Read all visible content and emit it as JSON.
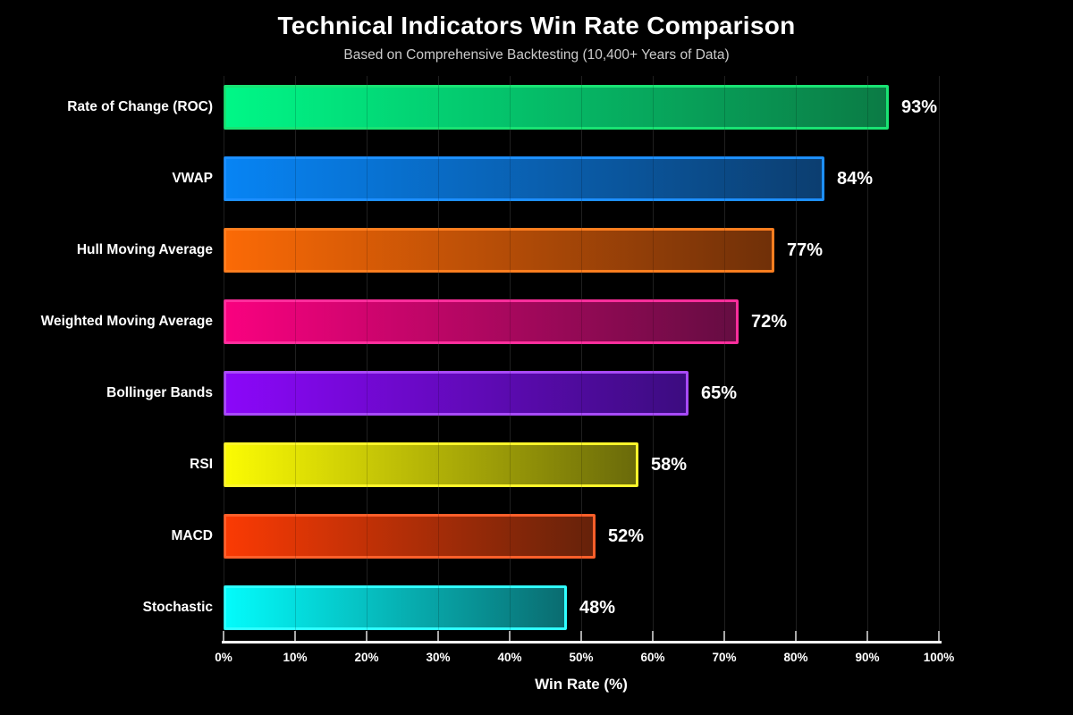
{
  "chart_data": {
    "type": "bar",
    "orientation": "horizontal",
    "title": "Technical Indicators Win Rate Comparison",
    "subtitle": "Based on Comprehensive Backtesting (10,400+ Years of Data)",
    "xlabel": "Win Rate (%)",
    "xlim": [
      0,
      100
    ],
    "x_tick_values": [
      0,
      10,
      20,
      30,
      40,
      50,
      60,
      70,
      80,
      90,
      100
    ],
    "x_tick_labels": [
      "0%",
      "10%",
      "20%",
      "30%",
      "40%",
      "50%",
      "60%",
      "70%",
      "80%",
      "90%",
      "100%"
    ],
    "grid": true,
    "legend": "none",
    "background_color": "#000000",
    "text_color": "#ffffff",
    "categories": [
      "Rate of Change (ROC)",
      "VWAP",
      "Hull Moving Average",
      "Weighted Moving Average",
      "Bollinger Bands",
      "RSI",
      "MACD",
      "Stochastic"
    ],
    "values": [
      93,
      84,
      77,
      72,
      65,
      58,
      52,
      48
    ],
    "value_labels": [
      "93%",
      "84%",
      "77%",
      "72%",
      "65%",
      "58%",
      "52%",
      "48%"
    ],
    "bar_colors": [
      {
        "start": "#00F787",
        "end": "#0B7B45",
        "border": "#19E373"
      },
      {
        "start": "#0784F4",
        "end": "#0C3E70",
        "border": "#1D8FFF"
      },
      {
        "start": "#FB6A06",
        "end": "#703008",
        "border": "#FF7E1F"
      },
      {
        "start": "#F9017F",
        "end": "#650D42",
        "border": "#FF2E9C"
      },
      {
        "start": "#8B07F9",
        "end": "#3C0C80",
        "border": "#A84AF8"
      },
      {
        "start": "#FBFB03",
        "end": "#6A6A0A",
        "border": "#FDF52B"
      },
      {
        "start": "#FA3A04",
        "end": "#66220A",
        "border": "#FF5F2A"
      },
      {
        "start": "#03FBFB",
        "end": "#0A6C70",
        "border": "#2FFFFF"
      }
    ]
  }
}
